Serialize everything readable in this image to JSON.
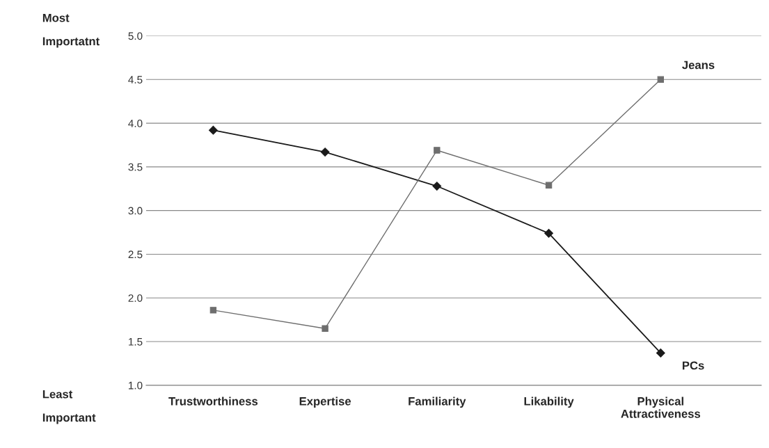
{
  "chart_data": {
    "type": "line",
    "categories": [
      "Trustworthiness",
      "Expertise",
      "Familiarity",
      "Likability",
      "Physical\nAttractiveness"
    ],
    "series": [
      {
        "name": "PCs",
        "color": "#1a1a1a",
        "marker": "diamond",
        "values": [
          3.92,
          3.67,
          3.28,
          2.74,
          1.37
        ]
      },
      {
        "name": "Jeans",
        "color": "#6e6e6e",
        "marker": "square",
        "values": [
          1.86,
          1.65,
          3.69,
          3.29,
          4.5
        ]
      }
    ],
    "ylim": [
      1.0,
      5.0
    ],
    "yticks": [
      {
        "value": 1.0,
        "label": "1.0"
      },
      {
        "value": 1.5,
        "label": "1.5"
      },
      {
        "value": 2.0,
        "label": "2.0"
      },
      {
        "value": 2.5,
        "label": "2.5"
      },
      {
        "value": 3.0,
        "label": "3.0"
      },
      {
        "value": 3.5,
        "label": "3.5"
      },
      {
        "value": 4.0,
        "label": "4.0"
      },
      {
        "value": 4.5,
        "label": "4.5"
      },
      {
        "value": 5.0,
        "label": "5.0"
      }
    ],
    "grid": "y",
    "line_style": "solid",
    "annotations": [
      "Most\nImportatnt",
      "Least\nImportant"
    ]
  }
}
